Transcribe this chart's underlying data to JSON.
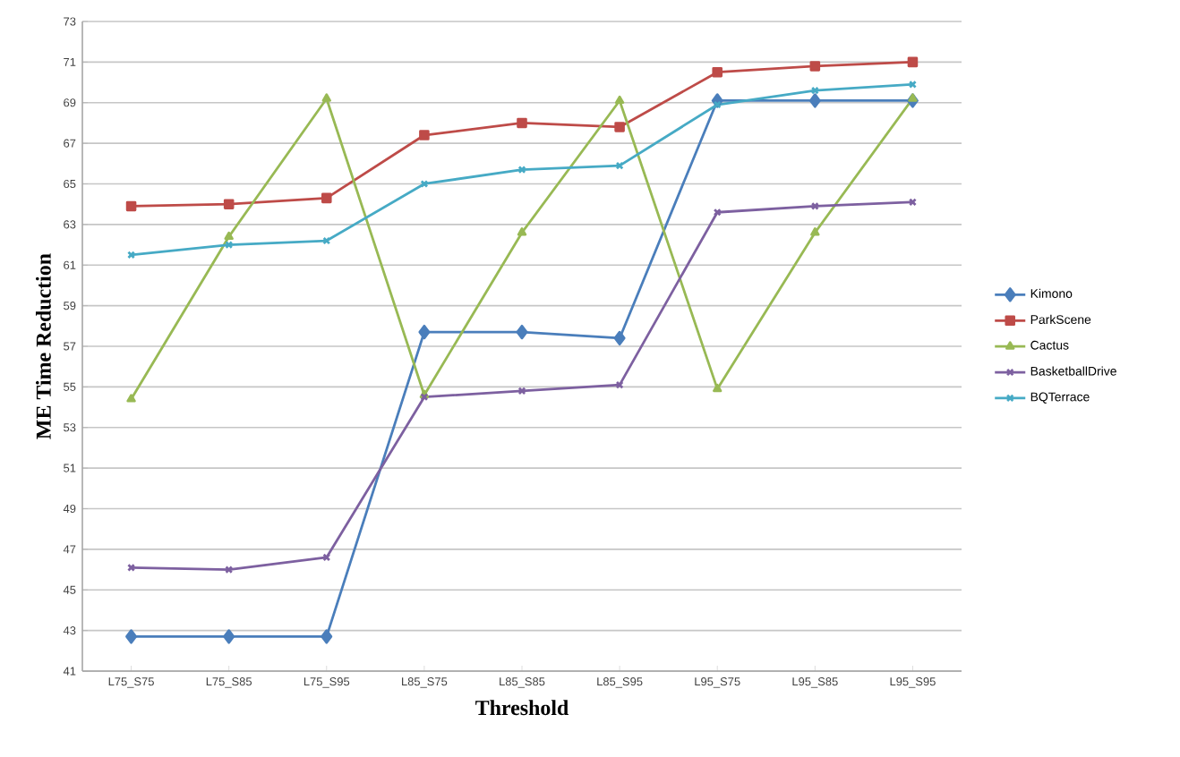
{
  "chart_data": {
    "type": "line",
    "xlabel": "Threshold",
    "ylabel": "ME Time Reduction",
    "categories": [
      "L75_S75",
      "L75_S85",
      "L75_S95",
      "L85_S75",
      "L85_S85",
      "L85_S95",
      "L95_S75",
      "L95_S85",
      "L95_S95"
    ],
    "series": [
      {
        "name": "Kimono",
        "color": "#4a7ebb",
        "marker": "diamond",
        "values": [
          42.7,
          42.7,
          42.7,
          57.7,
          57.7,
          57.4,
          69.1,
          69.1,
          69.1
        ]
      },
      {
        "name": "ParkScene",
        "color": "#be4b48",
        "marker": "square",
        "values": [
          63.9,
          64.0,
          64.3,
          67.4,
          68.0,
          67.8,
          70.5,
          70.8,
          71.0
        ]
      },
      {
        "name": "Cactus",
        "color": "#98b954",
        "marker": "triangle",
        "values": [
          54.4,
          62.4,
          69.2,
          54.6,
          62.6,
          69.1,
          54.9,
          62.6,
          69.2
        ]
      },
      {
        "name": "BasketballDrive",
        "color": "#7d60a0",
        "marker": "cross",
        "values": [
          46.1,
          46.0,
          46.6,
          54.5,
          54.8,
          55.1,
          63.6,
          63.9,
          64.1
        ]
      },
      {
        "name": "BQTerrace",
        "color": "#46aac5",
        "marker": "cross",
        "values": [
          61.5,
          62.0,
          62.2,
          65.0,
          65.7,
          65.9,
          68.9,
          69.6,
          69.9
        ]
      }
    ],
    "ylim": [
      41,
      73
    ],
    "yticks": [
      41,
      43,
      45,
      47,
      49,
      51,
      53,
      55,
      57,
      59,
      61,
      63,
      65,
      67,
      69,
      71,
      73
    ],
    "grid": "y",
    "legend": "right"
  }
}
